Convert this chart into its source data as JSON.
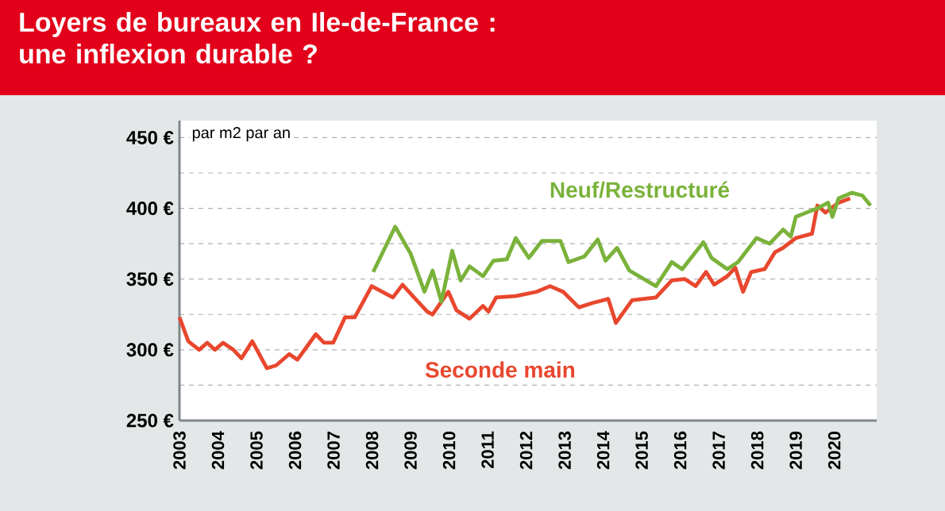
{
  "chart_data": {
    "type": "line",
    "title": "Loyers de bureaux en Ile-de-France : une inflexion durable ?",
    "annotations": [
      "par m2 par an"
    ],
    "xlim": [
      2003,
      2021.1
    ],
    "xticks": [
      2003,
      2004,
      2005,
      2006,
      2007,
      2008,
      2009,
      2010,
      2011,
      2012,
      2013,
      2014,
      2015,
      2016,
      2017,
      2018,
      2019,
      2020
    ],
    "ylim": [
      250,
      462
    ],
    "yticks": [
      {
        "value": 250,
        "label": "250 €"
      },
      {
        "value": 275,
        "label": null
      },
      {
        "value": 300,
        "label": "300 €"
      },
      {
        "value": 325,
        "label": null
      },
      {
        "value": 350,
        "label": "350 €"
      },
      {
        "value": 375,
        "label": null
      },
      {
        "value": 400,
        "label": "400 €"
      },
      {
        "value": 425,
        "label": null
      },
      {
        "value": 450,
        "label": "450 €"
      }
    ],
    "grid": "y",
    "marker": "none",
    "line_style": "solid",
    "series": [
      {
        "name": "Seconde main",
        "color": "#e8472e",
        "x": [
          2003.0,
          2003.23,
          2003.51,
          2003.72,
          2003.92,
          2004.13,
          2004.4,
          2004.61,
          2004.89,
          2005.27,
          2005.51,
          2005.85,
          2006.06,
          2006.54,
          2006.75,
          2006.99,
          2007.3,
          2007.55,
          2007.99,
          2008.54,
          2008.79,
          2009.09,
          2009.43,
          2009.57,
          2009.98,
          2010.19,
          2010.53,
          2010.88,
          2011.02,
          2011.22,
          2011.73,
          2012.27,
          2012.62,
          2012.96,
          2013.37,
          2013.71,
          2014.13,
          2014.33,
          2014.75,
          2015.37,
          2015.78,
          2016.12,
          2016.4,
          2016.67,
          2016.88,
          2017.22,
          2017.43,
          2017.63,
          2017.84,
          2018.19,
          2018.46,
          2018.67,
          2019.0,
          2019.42,
          2019.56,
          2019.77,
          2020.11,
          2020.41
        ],
        "values": [
          323,
          306,
          300,
          305,
          300,
          305,
          300,
          294,
          306,
          287,
          289,
          297,
          293,
          311,
          305,
          305,
          323,
          323,
          345,
          337,
          346,
          337,
          327,
          325,
          341,
          328,
          322,
          331,
          327,
          337,
          338,
          341,
          345,
          341,
          330,
          333,
          336,
          319,
          335,
          337,
          349,
          350,
          345,
          355,
          346,
          352,
          358,
          341,
          355,
          357,
          369,
          372,
          379,
          382,
          402,
          397,
          404,
          407
        ]
      },
      {
        "name": "Neuf/Restructuré",
        "color": "#7ab23a",
        "x": [
          2008.03,
          2008.6,
          2009.0,
          2009.36,
          2009.57,
          2009.8,
          2010.08,
          2010.3,
          2010.53,
          2010.88,
          2011.15,
          2011.5,
          2011.73,
          2012.07,
          2012.41,
          2012.89,
          2013.1,
          2013.51,
          2013.86,
          2014.06,
          2014.36,
          2014.68,
          2015.37,
          2015.78,
          2016.05,
          2016.6,
          2016.81,
          2017.22,
          2017.5,
          2017.98,
          2018.32,
          2018.67,
          2018.87,
          2019.0,
          2019.56,
          2019.84,
          2019.95,
          2020.11,
          2020.45,
          2020.73,
          2020.94
        ],
        "values": [
          355,
          387,
          368,
          341,
          356,
          334,
          370,
          349,
          359,
          352,
          363,
          364,
          379,
          365,
          377,
          377,
          362,
          366,
          378,
          363,
          372,
          356,
          345,
          362,
          357,
          376,
          365,
          357,
          362,
          379,
          375,
          385,
          380,
          394,
          400,
          404,
          394,
          407,
          411,
          409,
          402
        ]
      }
    ]
  }
}
